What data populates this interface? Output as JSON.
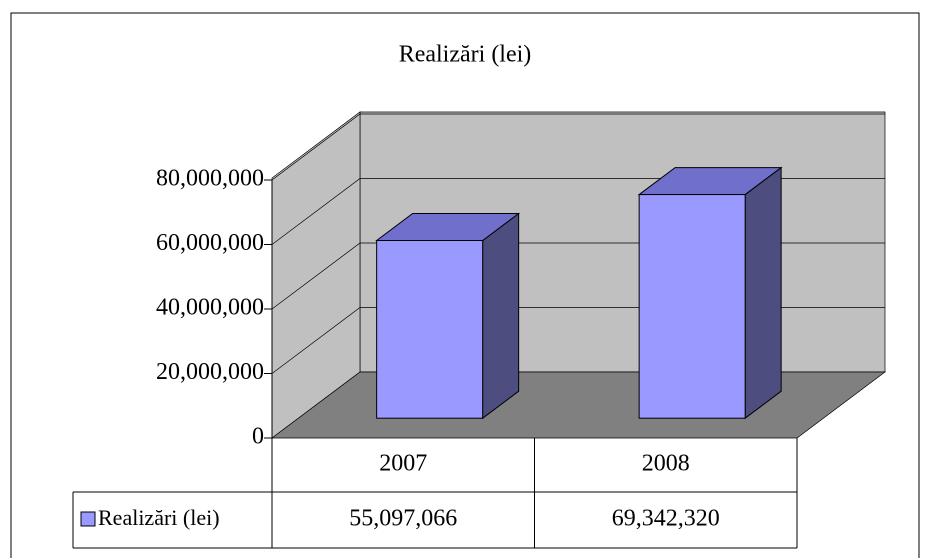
{
  "chart_data": {
    "type": "bar",
    "title": "Realizări (lei)",
    "categories": [
      "2007",
      "2008"
    ],
    "series": [
      {
        "name": "Realizări (lei)",
        "color": "#9999ff",
        "values": [
          55097066,
          69342320
        ],
        "value_labels": [
          "55,097,066",
          "69,342,320"
        ]
      }
    ],
    "ylim": [
      0,
      80000000
    ],
    "yticks": [
      {
        "value": 0,
        "label": "0"
      },
      {
        "value": 20000000,
        "label": "20,000,000"
      },
      {
        "value": 40000000,
        "label": "40,000,000"
      },
      {
        "value": 60000000,
        "label": "60,000,000"
      },
      {
        "value": 80000000,
        "label": "80,000,000"
      }
    ],
    "grid": true
  }
}
